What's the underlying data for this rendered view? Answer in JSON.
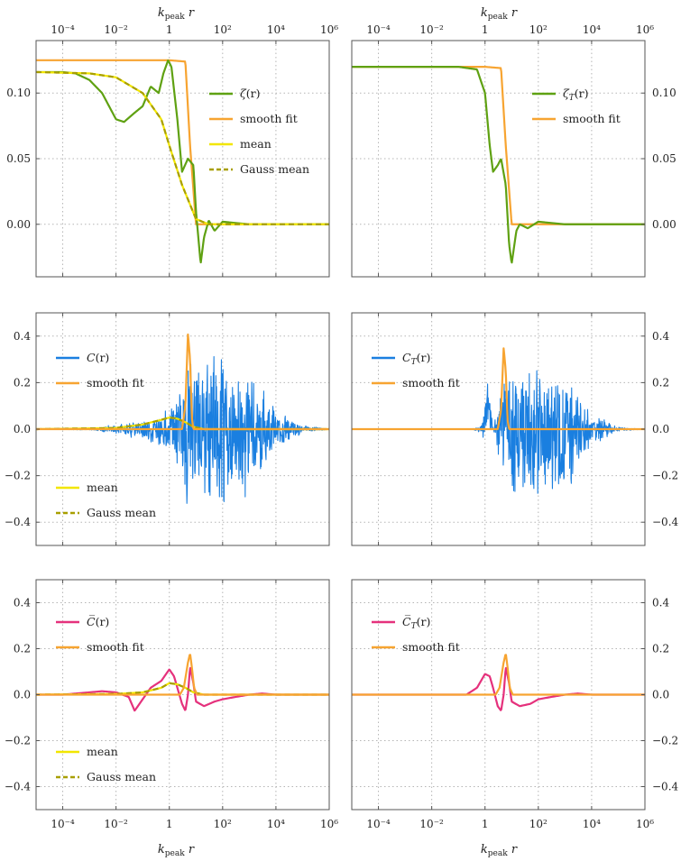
{
  "figure": {
    "xlabel_main": "k",
    "xlabel_sub": "peak",
    "xlabel_var": " r"
  },
  "colors": {
    "zeta": "#5fa112",
    "smooth": "#f7a431",
    "mean": "#f2e600",
    "gauss": "#a89f00",
    "C": "#1a7fe0",
    "Cbar": "#e5317c",
    "grid": "#b5b5b5",
    "frame": "#555555"
  },
  "x_ticks": [
    "10⁻⁴",
    "10⁻²",
    "1",
    "10²",
    "10⁴",
    "10⁶"
  ],
  "chart_data": [
    {
      "id": "zeta-left",
      "type": "line",
      "xscale": "log",
      "xlim": [
        1e-05,
        1000000.0
      ],
      "ylim": [
        -0.04,
        0.14
      ],
      "yticks": [
        "0.00",
        "0.05",
        "0.10"
      ],
      "ytick_values": [
        0,
        0.05,
        0.1
      ],
      "ytick_side": "left",
      "legend": [
        "ζ(r)",
        "smooth fit",
        "mean",
        "Gauss mean"
      ],
      "series": [
        {
          "name": "smooth fit",
          "key": "smooth",
          "x": [
            1e-05,
            0.01,
            1,
            4,
            6,
            10,
            1000000.0
          ],
          "y": [
            0.125,
            0.125,
            0.125,
            0.124,
            0.06,
            0.0,
            0.0
          ]
        },
        {
          "name": "ζ(r)",
          "key": "zeta",
          "x": [
            1e-05,
            0.0001,
            0.0003,
            0.001,
            0.003,
            0.01,
            0.02,
            0.05,
            0.1,
            0.2,
            0.4,
            0.6,
            0.9,
            1.2,
            2,
            3,
            5,
            8,
            10,
            15,
            20,
            30,
            50,
            100,
            300,
            1000,
            3000,
            10000
          ],
          "y": [
            0.116,
            0.116,
            0.115,
            0.11,
            0.1,
            0.08,
            0.078,
            0.085,
            0.09,
            0.105,
            0.1,
            0.115,
            0.125,
            0.12,
            0.08,
            0.04,
            0.05,
            0.045,
            0.01,
            -0.03,
            -0.01,
            0.003,
            -0.005,
            0.002,
            0.001,
            0.0,
            0.0,
            0.0
          ]
        },
        {
          "name": "mean",
          "key": "mean",
          "x": [
            1e-05,
            0.001,
            0.01,
            0.1,
            0.5,
            1,
            3,
            10,
            30,
            1000000.0
          ],
          "y": [
            0.116,
            0.115,
            0.112,
            0.1,
            0.08,
            0.06,
            0.03,
            0.004,
            0.0,
            0.0
          ]
        },
        {
          "name": "Gauss mean",
          "key": "gauss",
          "dashed": true,
          "x": [
            1e-05,
            0.001,
            0.01,
            0.1,
            0.5,
            1,
            3,
            10,
            30,
            1000000.0
          ],
          "y": [
            0.116,
            0.115,
            0.112,
            0.1,
            0.08,
            0.06,
            0.03,
            0.004,
            0.0,
            0.0
          ]
        }
      ]
    },
    {
      "id": "zeta-right",
      "type": "line",
      "xscale": "log",
      "xlim": [
        1e-05,
        1000000.0
      ],
      "ylim": [
        -0.04,
        0.14
      ],
      "yticks": [
        "0.00",
        "0.05",
        "0.10"
      ],
      "ytick_values": [
        0,
        0.05,
        0.1
      ],
      "ytick_side": "right",
      "legend": [
        "ζ_T(r)",
        "smooth fit"
      ],
      "series": [
        {
          "name": "smooth fit",
          "key": "smooth",
          "x": [
            1e-05,
            1,
            4,
            6,
            10,
            1000000.0
          ],
          "y": [
            0.12,
            0.12,
            0.119,
            0.06,
            0.0,
            0.0
          ]
        },
        {
          "name": "ζ_T(r)",
          "key": "zeta",
          "x": [
            1e-05,
            0.1,
            0.5,
            1,
            1.5,
            2,
            3,
            4,
            6,
            8,
            10,
            15,
            20,
            40,
            100,
            300,
            1000,
            3000
          ],
          "y": [
            0.12,
            0.12,
            0.118,
            0.1,
            0.06,
            0.04,
            0.045,
            0.05,
            0.03,
            -0.015,
            -0.03,
            -0.005,
            0.0,
            -0.003,
            0.002,
            0.001,
            0.0,
            0.0
          ]
        }
      ]
    },
    {
      "id": "C-left",
      "type": "line",
      "xscale": "log",
      "xlim": [
        1e-05,
        1000000.0
      ],
      "ylim": [
        -0.5,
        0.5
      ],
      "yticks": [
        "-0.4",
        "-0.2",
        "0.0",
        "0.2",
        "0.4"
      ],
      "ytick_values": [
        -0.4,
        -0.2,
        0,
        0.2,
        0.4
      ],
      "ytick_side": "left",
      "legend": [
        "C(r)",
        "smooth fit",
        "mean",
        "Gauss mean"
      ],
      "series": [
        {
          "name": "C(r)",
          "key": "C",
          "noisy": true,
          "x": [
            1e-05,
            0.001,
            0.01,
            0.1,
            1,
            3,
            5,
            8,
            20,
            100,
            1000,
            10000.0,
            100000.0,
            1000000.0
          ],
          "amp": [
            0.0,
            0.005,
            0.02,
            0.05,
            0.1,
            0.2,
            0.4,
            0.35,
            0.38,
            0.35,
            0.3,
            0.1,
            0.02,
            0.0
          ]
        },
        {
          "name": "mean",
          "key": "mean",
          "x": [
            1e-05,
            0.01,
            0.1,
            0.5,
            1,
            2,
            4,
            8,
            20,
            1000000.0
          ],
          "y": [
            0.0,
            0.005,
            0.02,
            0.04,
            0.05,
            0.045,
            0.03,
            0.01,
            0.0,
            0.0
          ]
        },
        {
          "name": "Gauss mean",
          "key": "gauss",
          "dashed": true,
          "x": [
            1e-05,
            0.01,
            0.1,
            0.5,
            1,
            2,
            4,
            8,
            20,
            1000000.0
          ],
          "y": [
            0.0,
            0.005,
            0.02,
            0.04,
            0.05,
            0.045,
            0.03,
            0.01,
            0.0,
            0.0
          ]
        },
        {
          "name": "smooth fit",
          "key": "smooth",
          "x": [
            1e-05,
            3,
            4,
            5,
            6,
            7,
            8,
            1000000.0
          ],
          "y": [
            0.0,
            0.0,
            0.1,
            0.41,
            0.3,
            0.05,
            0.0,
            0.0
          ]
        }
      ]
    },
    {
      "id": "C-right",
      "type": "line",
      "xscale": "log",
      "xlim": [
        1e-05,
        1000000.0
      ],
      "ylim": [
        -0.5,
        0.5
      ],
      "yticks": [
        "-0.4",
        "-0.2",
        "0.0",
        "0.2",
        "0.4"
      ],
      "ytick_values": [
        -0.4,
        -0.2,
        0,
        0.2,
        0.4
      ],
      "ytick_side": "right",
      "legend": [
        "C_T(r)",
        "smooth fit"
      ],
      "series": [
        {
          "name": "C_T(r)",
          "key": "C",
          "noisy": true,
          "x": [
            1e-05,
            0.3,
            0.7,
            1,
            1.5,
            2,
            3,
            5,
            10,
            100,
            1000,
            10000.0,
            100000.0,
            1000000.0
          ],
          "amp": [
            0.0,
            0.0,
            0.02,
            0.1,
            0.08,
            0.02,
            0.1,
            0.3,
            0.3,
            0.3,
            0.3,
            0.08,
            0.01,
            0.0
          ],
          "bump": true
        },
        {
          "name": "smooth fit",
          "key": "smooth",
          "x": [
            1e-05,
            3,
            4,
            5,
            6,
            7,
            8,
            1000000.0
          ],
          "y": [
            0.0,
            0.0,
            0.08,
            0.35,
            0.25,
            0.04,
            0.0,
            0.0
          ]
        }
      ]
    },
    {
      "id": "Cbar-left",
      "type": "line",
      "xscale": "log",
      "xlim": [
        1e-05,
        1000000.0
      ],
      "ylim": [
        -0.5,
        0.5
      ],
      "yticks": [
        "-0.4",
        "-0.2",
        "0.0",
        "0.2",
        "0.4"
      ],
      "ytick_values": [
        -0.4,
        -0.2,
        0,
        0.2,
        0.4
      ],
      "ytick_side": "left",
      "legend": [
        "C̅(r)",
        "smooth fit",
        "mean",
        "Gauss mean"
      ],
      "series": [
        {
          "name": "C̅(r)",
          "key": "Cbar",
          "x": [
            1e-05,
            0.0001,
            0.001,
            0.003,
            0.01,
            0.03,
            0.05,
            0.1,
            0.2,
            0.5,
            1,
            1.5,
            2,
            3,
            4,
            5,
            6,
            8,
            10,
            20,
            50,
            100,
            300,
            1000,
            3000,
            10000
          ],
          "y": [
            0.0,
            0.0,
            0.01,
            0.015,
            0.01,
            -0.01,
            -0.07,
            -0.02,
            0.03,
            0.06,
            0.11,
            0.08,
            0.03,
            -0.04,
            -0.07,
            0.0,
            0.12,
            0.05,
            -0.03,
            -0.05,
            -0.03,
            -0.02,
            -0.01,
            0.0,
            0.005,
            0.0
          ]
        },
        {
          "name": "mean",
          "key": "mean",
          "x": [
            1e-05,
            0.01,
            0.1,
            0.5,
            1,
            2,
            4,
            8,
            20,
            1000000.0
          ],
          "y": [
            0.0,
            0.003,
            0.01,
            0.03,
            0.05,
            0.045,
            0.03,
            0.01,
            0.0,
            0.0
          ]
        },
        {
          "name": "Gauss mean",
          "key": "gauss",
          "dashed": true,
          "x": [
            1e-05,
            0.01,
            0.1,
            0.5,
            1,
            2,
            4,
            8,
            20,
            1000000.0
          ],
          "y": [
            0.0,
            0.003,
            0.01,
            0.03,
            0.05,
            0.045,
            0.03,
            0.01,
            0.0,
            0.0
          ]
        },
        {
          "name": "smooth fit",
          "key": "smooth",
          "x": [
            1e-05,
            2.5,
            3.5,
            5,
            6,
            7,
            8.5,
            11,
            1000000.0
          ],
          "y": [
            0.0,
            0.0,
            0.03,
            0.14,
            0.18,
            0.12,
            0.03,
            0.0,
            0.0
          ]
        }
      ]
    },
    {
      "id": "Cbar-right",
      "type": "line",
      "xscale": "log",
      "xlim": [
        1e-05,
        1000000.0
      ],
      "ylim": [
        -0.5,
        0.5
      ],
      "yticks": [
        "-0.4",
        "-0.2",
        "0.0",
        "0.2",
        "0.4"
      ],
      "ytick_values": [
        -0.4,
        -0.2,
        0,
        0.2,
        0.4
      ],
      "ytick_side": "right",
      "legend": [
        "C̅_T(r)",
        "smooth fit"
      ],
      "series": [
        {
          "name": "C̅_T(r)",
          "key": "Cbar",
          "x": [
            1e-05,
            0.2,
            0.5,
            1,
            1.5,
            2,
            3,
            4,
            5,
            6,
            8,
            10,
            20,
            50,
            100,
            300,
            1000,
            3000,
            10000
          ],
          "y": [
            0.0,
            0.0,
            0.03,
            0.09,
            0.08,
            0.03,
            -0.05,
            -0.07,
            0.0,
            0.12,
            0.05,
            -0.03,
            -0.05,
            -0.04,
            -0.02,
            -0.01,
            0.0,
            0.005,
            0.0
          ]
        },
        {
          "name": "smooth fit",
          "key": "smooth",
          "x": [
            1e-05,
            2.5,
            3.5,
            5,
            6,
            7,
            8.5,
            11,
            1000000.0
          ],
          "y": [
            0.0,
            0.0,
            0.03,
            0.14,
            0.18,
            0.12,
            0.03,
            0.0,
            0.0
          ]
        }
      ]
    }
  ]
}
